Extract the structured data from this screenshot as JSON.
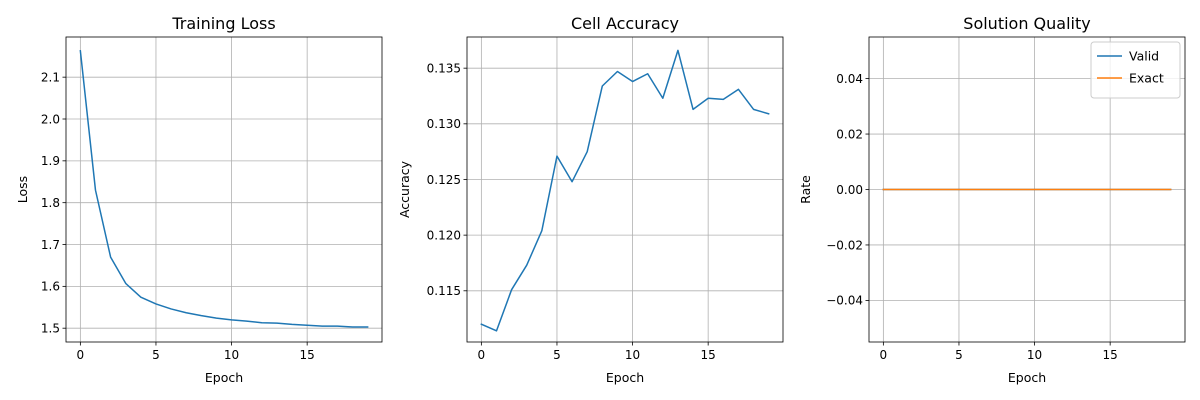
{
  "chart_data": [
    {
      "type": "line",
      "title": "Training Loss",
      "xlabel": "Epoch",
      "ylabel": "Loss",
      "xlim": [
        -0.95,
        19.95
      ],
      "ylim": [
        1.467,
        2.196
      ],
      "xticks": [
        0,
        5,
        10,
        15
      ],
      "yticks": [
        1.5,
        1.6,
        1.7,
        1.8,
        1.9,
        2.0,
        2.1
      ],
      "ytick_labels": [
        "1.5",
        "1.6",
        "1.7",
        "1.8",
        "1.9",
        "2.0",
        "2.1"
      ],
      "grid": true,
      "legend": null,
      "x": [
        0,
        1,
        2,
        3,
        4,
        5,
        6,
        7,
        8,
        9,
        10,
        11,
        12,
        13,
        14,
        15,
        16,
        17,
        18,
        19
      ],
      "series": [
        {
          "color": "#1f77b4",
          "values": [
            2.163,
            1.83,
            1.67,
            1.607,
            1.574,
            1.558,
            1.546,
            1.537,
            1.53,
            1.524,
            1.52,
            1.517,
            1.513,
            1.512,
            1.509,
            1.507,
            1.505,
            1.505,
            1.503,
            1.503
          ]
        }
      ]
    },
    {
      "type": "line",
      "title": "Cell Accuracy",
      "xlabel": "Epoch",
      "ylabel": "Accuracy",
      "xlim": [
        -0.95,
        19.95
      ],
      "ylim": [
        0.1104,
        0.1378
      ],
      "xticks": [
        0,
        5,
        10,
        15
      ],
      "yticks": [
        0.115,
        0.12,
        0.125,
        0.13,
        0.135
      ],
      "ytick_labels": [
        "0.115",
        "0.120",
        "0.125",
        "0.130",
        "0.135"
      ],
      "grid": true,
      "legend": null,
      "x": [
        0,
        1,
        2,
        3,
        4,
        5,
        6,
        7,
        8,
        9,
        10,
        11,
        12,
        13,
        14,
        15,
        16,
        17,
        18,
        19
      ],
      "series": [
        {
          "color": "#1f77b4",
          "values": [
            0.112,
            0.1114,
            0.1151,
            0.1173,
            0.1204,
            0.1271,
            0.1248,
            0.1275,
            0.1334,
            0.1347,
            0.1338,
            0.1345,
            0.1323,
            0.1366,
            0.1313,
            0.1323,
            0.1322,
            0.1331,
            0.1313,
            0.1309
          ]
        }
      ]
    },
    {
      "type": "line",
      "title": "Solution Quality",
      "xlabel": "Epoch",
      "ylabel": "Rate",
      "xlim": [
        -0.95,
        19.95
      ],
      "ylim": [
        -0.055,
        0.055
      ],
      "xticks": [
        0,
        5,
        10,
        15
      ],
      "yticks": [
        -0.04,
        -0.02,
        0.0,
        0.02,
        0.04
      ],
      "ytick_labels": [
        "−0.04",
        "−0.02",
        "0.00",
        "0.02",
        "0.04"
      ],
      "grid": true,
      "legend": "top-right",
      "x": [
        0,
        1,
        2,
        3,
        4,
        5,
        6,
        7,
        8,
        9,
        10,
        11,
        12,
        13,
        14,
        15,
        16,
        17,
        18,
        19
      ],
      "series": [
        {
          "name": "Valid",
          "color": "#1f77b4",
          "values": [
            0,
            0,
            0,
            0,
            0,
            0,
            0,
            0,
            0,
            0,
            0,
            0,
            0,
            0,
            0,
            0,
            0,
            0,
            0,
            0
          ]
        },
        {
          "name": "Exact",
          "color": "#ff7f0e",
          "values": [
            0,
            0,
            0,
            0,
            0,
            0,
            0,
            0,
            0,
            0,
            0,
            0,
            0,
            0,
            0,
            0,
            0,
            0,
            0,
            0
          ]
        }
      ]
    }
  ]
}
